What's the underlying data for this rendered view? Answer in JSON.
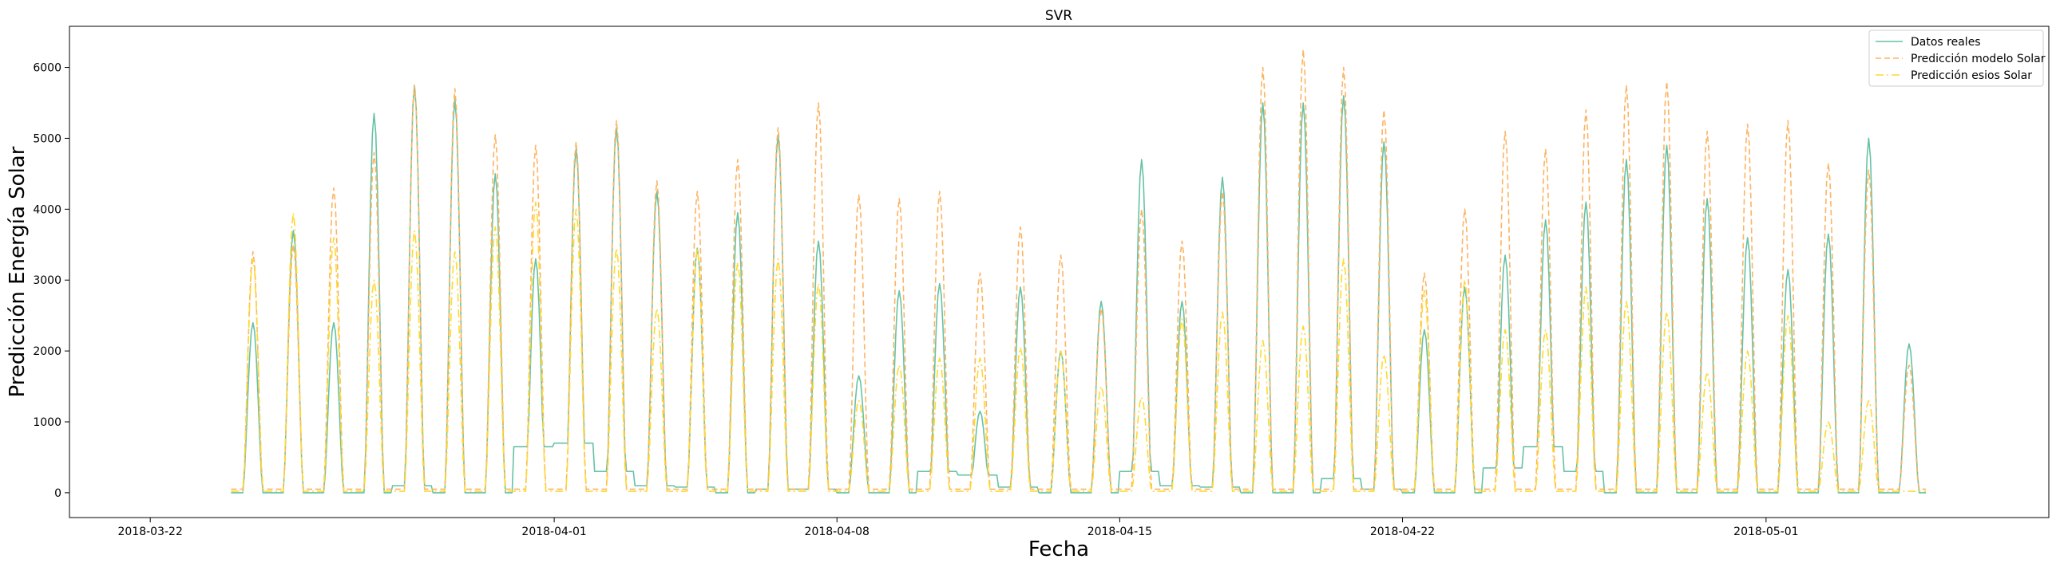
{
  "chart_data": {
    "type": "line",
    "title": "SVR",
    "xlabel": "Fecha",
    "ylabel": "Predicción Energía Solar",
    "xlim": [
      "2018-03-20",
      "2018-05-08"
    ],
    "ylim": [
      -350,
      6580
    ],
    "x_ticks": [
      "2018-03-22",
      "2018-04-01",
      "2018-04-08",
      "2018-04-15",
      "2018-04-22",
      "2018-05-01"
    ],
    "y_ticks": [
      0,
      1000,
      2000,
      3000,
      4000,
      5000,
      6000
    ],
    "grid": false,
    "legend_position": "top-right",
    "x_start": "2018-03-24",
    "x_end": "2018-05-05",
    "series": [
      {
        "name": "Datos reales",
        "color": "#66c2a5",
        "style": "solid",
        "night_level": [
          0,
          0,
          0,
          0,
          100,
          0,
          0,
          650,
          700,
          300,
          100,
          80,
          0,
          50,
          50,
          0,
          0,
          300,
          250,
          80,
          0,
          0,
          300,
          100,
          80,
          0,
          0,
          200,
          50,
          0,
          0,
          350,
          650,
          300,
          0,
          0,
          0,
          0,
          0,
          0,
          0,
          0
        ],
        "daily_peaks": [
          2400,
          3700,
          2400,
          5350,
          5750,
          5550,
          4500,
          3300,
          4850,
          5150,
          4250,
          3450,
          3950,
          5050,
          3550,
          1650,
          2850,
          2950,
          1150,
          2900,
          2000,
          2700,
          4700,
          2700,
          4450,
          5500,
          5500,
          5600,
          4950,
          2300,
          2900,
          3350,
          3850,
          4100,
          4700,
          4900,
          4150,
          3600,
          3150,
          3650,
          5000,
          2100
        ]
      },
      {
        "name": "Predicción modelo Solar",
        "color": "#fdb462",
        "style": "dashed",
        "night_level": [
          50,
          50,
          50,
          50,
          50,
          50,
          50,
          50,
          50,
          50,
          50,
          50,
          50,
          50,
          50,
          50,
          50,
          50,
          50,
          50,
          50,
          50,
          50,
          50,
          50,
          50,
          50,
          50,
          50,
          50,
          50,
          50,
          50,
          50,
          50,
          50,
          50,
          50,
          50,
          50,
          50,
          50
        ],
        "daily_peaks": [
          3400,
          3500,
          4300,
          4800,
          5750,
          5700,
          5050,
          4900,
          4950,
          5250,
          4400,
          4250,
          4700,
          5150,
          5500,
          4200,
          4150,
          4250,
          3100,
          3750,
          3350,
          2600,
          4000,
          3550,
          4250,
          6000,
          6250,
          6000,
          5400,
          3100,
          4000,
          5100,
          4850,
          5400,
          5750,
          5800,
          5100,
          5200,
          5250,
          4650,
          4550,
          1800
        ]
      },
      {
        "name": "Predicción esios Solar",
        "color": "#ffd92f",
        "style": "dashdot",
        "night_level": [
          20,
          20,
          20,
          20,
          20,
          20,
          20,
          20,
          20,
          20,
          20,
          20,
          20,
          20,
          20,
          20,
          20,
          20,
          20,
          20,
          20,
          20,
          20,
          20,
          20,
          20,
          20,
          20,
          20,
          20,
          20,
          20,
          20,
          20,
          20,
          20,
          20,
          20,
          20,
          20,
          20,
          20
        ],
        "daily_peaks": [
          3300,
          3950,
          3600,
          3000,
          3700,
          3400,
          3750,
          4100,
          4000,
          3450,
          2600,
          3450,
          3250,
          3300,
          2950,
          1300,
          1800,
          1900,
          1900,
          2050,
          2000,
          1500,
          1350,
          2450,
          2550,
          2150,
          2350,
          3300,
          1950,
          2850,
          3000,
          2300,
          2300,
          2900,
          2700,
          2550,
          1700,
          2000,
          2500,
          1000,
          1300,
          0
        ]
      }
    ]
  }
}
